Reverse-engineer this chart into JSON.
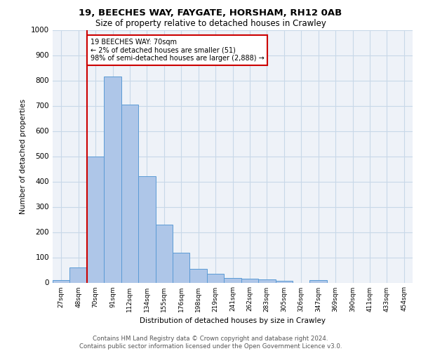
{
  "title1": "19, BEECHES WAY, FAYGATE, HORSHAM, RH12 0AB",
  "title2": "Size of property relative to detached houses in Crawley",
  "xlabel": "Distribution of detached houses by size in Crawley",
  "ylabel": "Number of detached properties",
  "bar_values": [
    10,
    60,
    500,
    815,
    705,
    420,
    228,
    118,
    55,
    35,
    18,
    15,
    12,
    8,
    0,
    10,
    0,
    0,
    0,
    0,
    0
  ],
  "categories": [
    "27sqm",
    "48sqm",
    "70sqm",
    "91sqm",
    "112sqm",
    "134sqm",
    "155sqm",
    "176sqm",
    "198sqm",
    "219sqm",
    "241sqm",
    "262sqm",
    "283sqm",
    "305sqm",
    "326sqm",
    "347sqm",
    "369sqm",
    "390sqm",
    "411sqm",
    "433sqm",
    "454sqm"
  ],
  "bar_color": "#aec6e8",
  "bar_edge_color": "#5b9bd5",
  "vline_index": 2,
  "vline_color": "#cc0000",
  "annotation_line1": "19 BEECHES WAY: 70sqm",
  "annotation_line2": "← 2% of detached houses are smaller (51)",
  "annotation_line3": "98% of semi-detached houses are larger (2,888) →",
  "annotation_box_color": "#cc0000",
  "annotation_bg": "white",
  "ylim": [
    0,
    1000
  ],
  "yticks": [
    0,
    100,
    200,
    300,
    400,
    500,
    600,
    700,
    800,
    900,
    1000
  ],
  "footer": "Contains HM Land Registry data © Crown copyright and database right 2024.\nContains public sector information licensed under the Open Government Licence v3.0.",
  "grid_color": "#c8d8e8",
  "background_color": "#eef2f8"
}
